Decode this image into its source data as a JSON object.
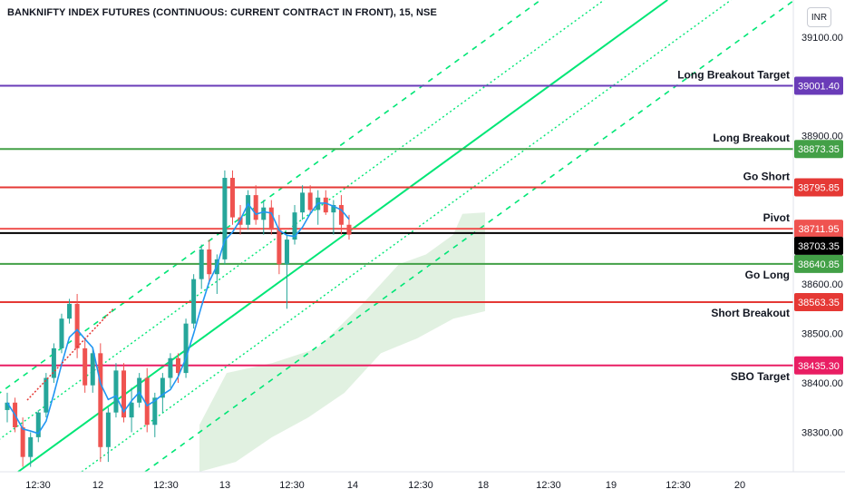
{
  "header": {
    "title": "BANKNIFTY INDEX FUTURES (CONTINUOUS: CURRENT CONTRACT IN FRONT), 15, NSE",
    "currency": "INR"
  },
  "chart_data": {
    "type": "candlestick",
    "ylim": [
      38220,
      39175
    ],
    "y_ticks": [
      38300,
      38400,
      38500,
      38600,
      38700,
      38800,
      38900,
      39000,
      39100
    ],
    "x_ticks": [
      "12:30",
      "12",
      "12:30",
      "13",
      "12:30",
      "14",
      "12:30",
      "18",
      "12:30",
      "19",
      "12:30",
      "20"
    ],
    "current_price": {
      "value": 38703.35,
      "label": "38703.35",
      "color": "#000000"
    },
    "levels": [
      {
        "name": "Long Breakout Target",
        "value": 39001.4,
        "label": "39001.40",
        "color": "#6a3cb8"
      },
      {
        "name": "Long Breakout",
        "value": 38873.35,
        "label": "38873.35",
        "color": "#43a047"
      },
      {
        "name": "Go Short",
        "value": 38795.85,
        "label": "38795.85",
        "color": "#e53935"
      },
      {
        "name": "Pivot",
        "value": 38711.95,
        "label": "38711.95",
        "color": "#ef5350"
      },
      {
        "name": "Go Long",
        "value": 38640.85,
        "label": "38640.85",
        "color": "#43a047"
      },
      {
        "name": "Short Breakout",
        "value": 38563.35,
        "label": "38563.35",
        "color": "#e53935"
      },
      {
        "name": "SBO Target",
        "value": 38435.3,
        "label": "38435.30",
        "color": "#e91e63"
      }
    ],
    "colors": {
      "up": "#26a69a",
      "down": "#ef5350",
      "ma": "#2196f3",
      "channel": "#00e676",
      "cloud": "#c8e6c9"
    },
    "candles": [
      [
        38345,
        38380,
        38320,
        38360
      ],
      [
        38360,
        38370,
        38300,
        38310
      ],
      [
        38310,
        38330,
        38230,
        38250
      ],
      [
        38250,
        38300,
        38230,
        38290
      ],
      [
        38290,
        38345,
        38280,
        38340
      ],
      [
        38340,
        38420,
        38330,
        38410
      ],
      [
        38410,
        38480,
        38400,
        38470
      ],
      [
        38470,
        38540,
        38460,
        38530
      ],
      [
        38530,
        38570,
        38520,
        38560
      ],
      [
        38560,
        38580,
        38450,
        38470
      ],
      [
        38470,
        38490,
        38380,
        38395
      ],
      [
        38395,
        38470,
        38380,
        38460
      ],
      [
        38460,
        38480,
        38240,
        38270
      ],
      [
        38270,
        38350,
        38240,
        38340
      ],
      [
        38340,
        38440,
        38330,
        38425
      ],
      [
        38425,
        38440,
        38320,
        38330
      ],
      [
        38330,
        38390,
        38300,
        38360
      ],
      [
        38360,
        38420,
        38350,
        38410
      ],
      [
        38410,
        38430,
        38300,
        38315
      ],
      [
        38315,
        38380,
        38290,
        38370
      ],
      [
        38370,
        38420,
        38340,
        38410
      ],
      [
        38410,
        38460,
        38390,
        38450
      ],
      [
        38450,
        38460,
        38400,
        38420
      ],
      [
        38420,
        38530,
        38410,
        38520
      ],
      [
        38520,
        38620,
        38510,
        38610
      ],
      [
        38610,
        38680,
        38590,
        38670
      ],
      [
        38670,
        38690,
        38600,
        38620
      ],
      [
        38620,
        38660,
        38580,
        38650
      ],
      [
        38650,
        38830,
        38640,
        38815
      ],
      [
        38815,
        38830,
        38720,
        38735
      ],
      [
        38735,
        38760,
        38700,
        38720
      ],
      [
        38720,
        38790,
        38710,
        38780
      ],
      [
        38780,
        38800,
        38720,
        38730
      ],
      [
        38730,
        38770,
        38700,
        38755
      ],
      [
        38755,
        38770,
        38700,
        38710
      ],
      [
        38710,
        38740,
        38620,
        38640
      ],
      [
        38640,
        38700,
        38550,
        38690
      ],
      [
        38690,
        38760,
        38680,
        38745
      ],
      [
        38745,
        38800,
        38730,
        38785
      ],
      [
        38785,
        38800,
        38740,
        38750
      ],
      [
        38750,
        38790,
        38720,
        38775
      ],
      [
        38775,
        38790,
        38740,
        38745
      ],
      [
        38745,
        38770,
        38700,
        38760
      ],
      [
        38760,
        38780,
        38700,
        38720
      ],
      [
        38720,
        38740,
        38690,
        38700
      ]
    ]
  },
  "annotations": {
    "pivot_label_secondary": "38703.35"
  }
}
